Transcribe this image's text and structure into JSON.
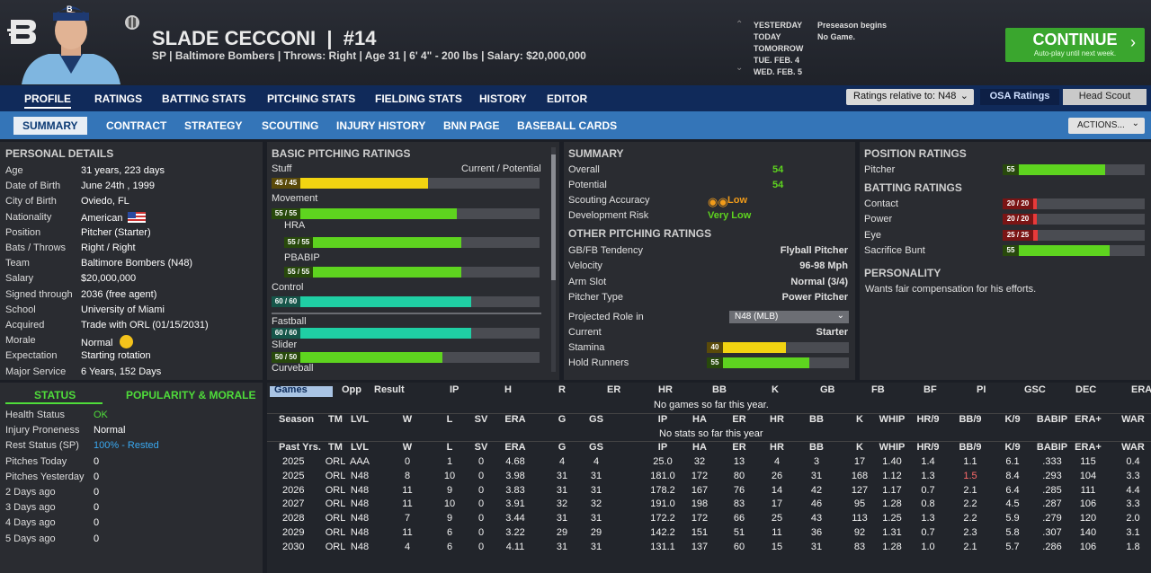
{
  "header": {
    "name": "SLADE CECCONI",
    "number": "#14",
    "subtitle": "SP | Baltimore Bombers | Throws: Right | Age 31 | 6' 4\" - 200 lbs | Salary: $20,000,000",
    "dates": [
      {
        "label": "YESTERDAY",
        "event": "Preseason begins"
      },
      {
        "label": "TODAY",
        "event": "No Game."
      },
      {
        "label": "TOMORROW",
        "event": ""
      },
      {
        "label": "TUE. FEB. 4",
        "event": ""
      },
      {
        "label": "WED. FEB. 5",
        "event": ""
      }
    ],
    "continue_label": "CONTINUE",
    "continue_sub": "Auto-play until next week.",
    "continue_color": "#3aa62e"
  },
  "nav1": [
    "PROFILE",
    "RATINGS",
    "BATTING STATS",
    "PITCHING STATS",
    "FIELDING STATS",
    "HISTORY",
    "EDITOR"
  ],
  "ratings_relative": "Ratings relative to: N48",
  "osa_ratings": "OSA Ratings",
  "head_scout": "Head Scout",
  "nav2": [
    "SUMMARY",
    "CONTRACT",
    "STRATEGY",
    "SCOUTING",
    "INJURY HISTORY",
    "BNN PAGE",
    "BASEBALL CARDS"
  ],
  "actions_label": "ACTIONS...",
  "personal": {
    "title": "PERSONAL DETAILS",
    "rows": [
      [
        "Age",
        "31 years, 223 days"
      ],
      [
        "Date of Birth",
        "June 24th , 1999"
      ],
      [
        "City of Birth",
        "Oviedo, FL"
      ],
      [
        "Nationality",
        "American"
      ],
      [
        "Position",
        "Pitcher (Starter)"
      ],
      [
        "Bats / Throws",
        "Right / Right"
      ],
      [
        "Team",
        "Baltimore Bombers (N48)"
      ],
      [
        "Salary",
        "$20,000,000"
      ],
      [
        "Signed through",
        "2036 (free agent)"
      ],
      [
        "School",
        "University of Miami"
      ],
      [
        "Acquired",
        "Trade with ORL (01/15/2031)"
      ],
      [
        "Morale",
        "Normal"
      ],
      [
        "Expectation",
        "Starting rotation"
      ],
      [
        "Major Service",
        "6 Years, 152 Days"
      ]
    ]
  },
  "status": {
    "tab1": "STATUS",
    "tab2": "POPULARITY & MORALE",
    "rows": [
      [
        "Health Status",
        "OK"
      ],
      [
        "Injury Proneness",
        "Normal"
      ],
      [
        "Rest Status (SP)",
        "100% - Rested"
      ],
      [
        "Pitches Today",
        "0"
      ],
      [
        "Pitches Yesterday",
        "0"
      ],
      [
        "2 Days ago",
        "0"
      ],
      [
        "3 Days ago",
        "0"
      ],
      [
        "4 Days ago",
        "0"
      ],
      [
        "5 Days ago",
        "0"
      ]
    ]
  },
  "basic_pitching": {
    "title": "BASIC PITCHING RATINGS",
    "cp_label": "Current / Potential",
    "items": [
      {
        "name": "Stuff",
        "label": "45 / 45",
        "value": 45,
        "color": "#f2d411"
      },
      {
        "name": "Movement",
        "label": "55 / 55",
        "value": 55,
        "color": "#5ed41f"
      },
      {
        "name": "HRA",
        "label": "55 / 55",
        "value": 55,
        "color": "#5ed41f"
      },
      {
        "name": "PBABIP",
        "label": "55 / 55",
        "value": 55,
        "color": "#5ed41f"
      },
      {
        "name": "Control",
        "label": "60 / 60",
        "value": 60,
        "color": "#1fcfa4"
      },
      {
        "name": "Fastball",
        "label": "60 / 60",
        "value": 60,
        "color": "#1fcfa4"
      },
      {
        "name": "Slider",
        "label": "50 / 50",
        "value": 50,
        "color": "#5ed41f"
      },
      {
        "name": "Curveball",
        "label": "",
        "value": 0,
        "color": "#5ed41f"
      }
    ]
  },
  "summary": {
    "title": "SUMMARY",
    "overall_label": "Overall",
    "overall": "54",
    "potential_label": "Potential",
    "potential": "54",
    "accuracy_label": "Scouting Accuracy",
    "accuracy": "Low",
    "risk_label": "Development Risk",
    "risk": "Very Low",
    "other_title": "OTHER PITCHING RATINGS",
    "other": [
      [
        "GB/FB Tendency",
        "Flyball Pitcher"
      ],
      [
        "Velocity",
        "96-98 Mph"
      ],
      [
        "Arm Slot",
        "Normal (3/4)"
      ],
      [
        "Pitcher Type",
        "Power Pitcher"
      ]
    ],
    "role_label": "Projected Role in",
    "role_select": "N48 (MLB)",
    "current_label": "Current",
    "current": "Starter",
    "stamina_label": "Stamina",
    "stamina": 40,
    "hold_label": "Hold Runners",
    "hold": 55
  },
  "position": {
    "title": "POSITION RATINGS",
    "pitcher_label": "Pitcher",
    "pitcher": 55,
    "batting_title": "BATTING RATINGS",
    "batting": [
      {
        "name": "Contact",
        "label": "20 / 20",
        "value": 20,
        "color": "#e83a3a"
      },
      {
        "name": "Power",
        "label": "20 / 20",
        "value": 20,
        "color": "#e83a3a"
      },
      {
        "name": "Eye",
        "label": "25 / 25",
        "value": 25,
        "color": "#e83a3a"
      },
      {
        "name": "Sacrifice Bunt",
        "label": "55",
        "value": 55,
        "color": "#5ed41f"
      }
    ],
    "personality_title": "PERSONALITY",
    "personality": "Wants fair compensation for his efforts."
  },
  "stats": {
    "games_cols": [
      "Games",
      "Opp",
      "Result",
      "IP",
      "H",
      "R",
      "ER",
      "HR",
      "BB",
      "K",
      "GB",
      "FB",
      "BF",
      "PI",
      "GSC",
      "DEC",
      "ERA"
    ],
    "no_games": "No games so far this year.",
    "season_cols": [
      "Season",
      "TM",
      "LVL",
      "W",
      "L",
      "SV",
      "ERA",
      "G",
      "GS",
      "IP",
      "HA",
      "ER",
      "HR",
      "BB",
      "K",
      "WHIP",
      "HR/9",
      "BB/9",
      "K/9",
      "BABIP",
      "ERA+",
      "WAR"
    ],
    "no_stats": "No stats so far this year",
    "past_cols": [
      "Past Yrs.",
      "TM",
      "LVL",
      "W",
      "L",
      "SV",
      "ERA",
      "G",
      "GS",
      "IP",
      "HA",
      "ER",
      "HR",
      "BB",
      "K",
      "WHIP",
      "HR/9",
      "BB/9",
      "K/9",
      "BABIP",
      "ERA+",
      "WAR"
    ],
    "rows": [
      [
        "2025",
        "ORL",
        "AAA",
        "0",
        "1",
        "0",
        "4.68",
        "4",
        "4",
        "25.0",
        "32",
        "13",
        "4",
        "3",
        "17",
        "1.40",
        "1.4",
        "1.1",
        "6.1",
        ".333",
        "115",
        "0.4"
      ],
      [
        "2025",
        "ORL",
        "N48",
        "8",
        "10",
        "0",
        "3.98",
        "31",
        "31",
        "181.0",
        "172",
        "80",
        "26",
        "31",
        "168",
        "1.12",
        "1.3",
        "1.5",
        "8.4",
        ".293",
        "104",
        "3.3"
      ],
      [
        "2026",
        "ORL",
        "N48",
        "11",
        "9",
        "0",
        "3.83",
        "31",
        "31",
        "178.2",
        "167",
        "76",
        "14",
        "42",
        "127",
        "1.17",
        "0.7",
        "2.1",
        "6.4",
        ".285",
        "111",
        "4.4"
      ],
      [
        "2027",
        "ORL",
        "N48",
        "11",
        "10",
        "0",
        "3.91",
        "32",
        "32",
        "191.0",
        "198",
        "83",
        "17",
        "46",
        "95",
        "1.28",
        "0.8",
        "2.2",
        "4.5",
        ".287",
        "106",
        "3.3"
      ],
      [
        "2028",
        "ORL",
        "N48",
        "7",
        "9",
        "0",
        "3.44",
        "31",
        "31",
        "172.2",
        "172",
        "66",
        "25",
        "43",
        "113",
        "1.25",
        "1.3",
        "2.2",
        "5.9",
        ".279",
        "120",
        "2.0"
      ],
      [
        "2029",
        "ORL",
        "N48",
        "11",
        "6",
        "0",
        "3.22",
        "29",
        "29",
        "142.2",
        "151",
        "51",
        "11",
        "36",
        "92",
        "1.31",
        "0.7",
        "2.3",
        "5.8",
        ".307",
        "140",
        "3.1"
      ],
      [
        "2030",
        "ORL",
        "N48",
        "4",
        "6",
        "0",
        "4.11",
        "31",
        "31",
        "131.1",
        "137",
        "60",
        "15",
        "31",
        "83",
        "1.28",
        "1.0",
        "2.1",
        "5.7",
        ".286",
        "106",
        "1.8"
      ]
    ]
  }
}
